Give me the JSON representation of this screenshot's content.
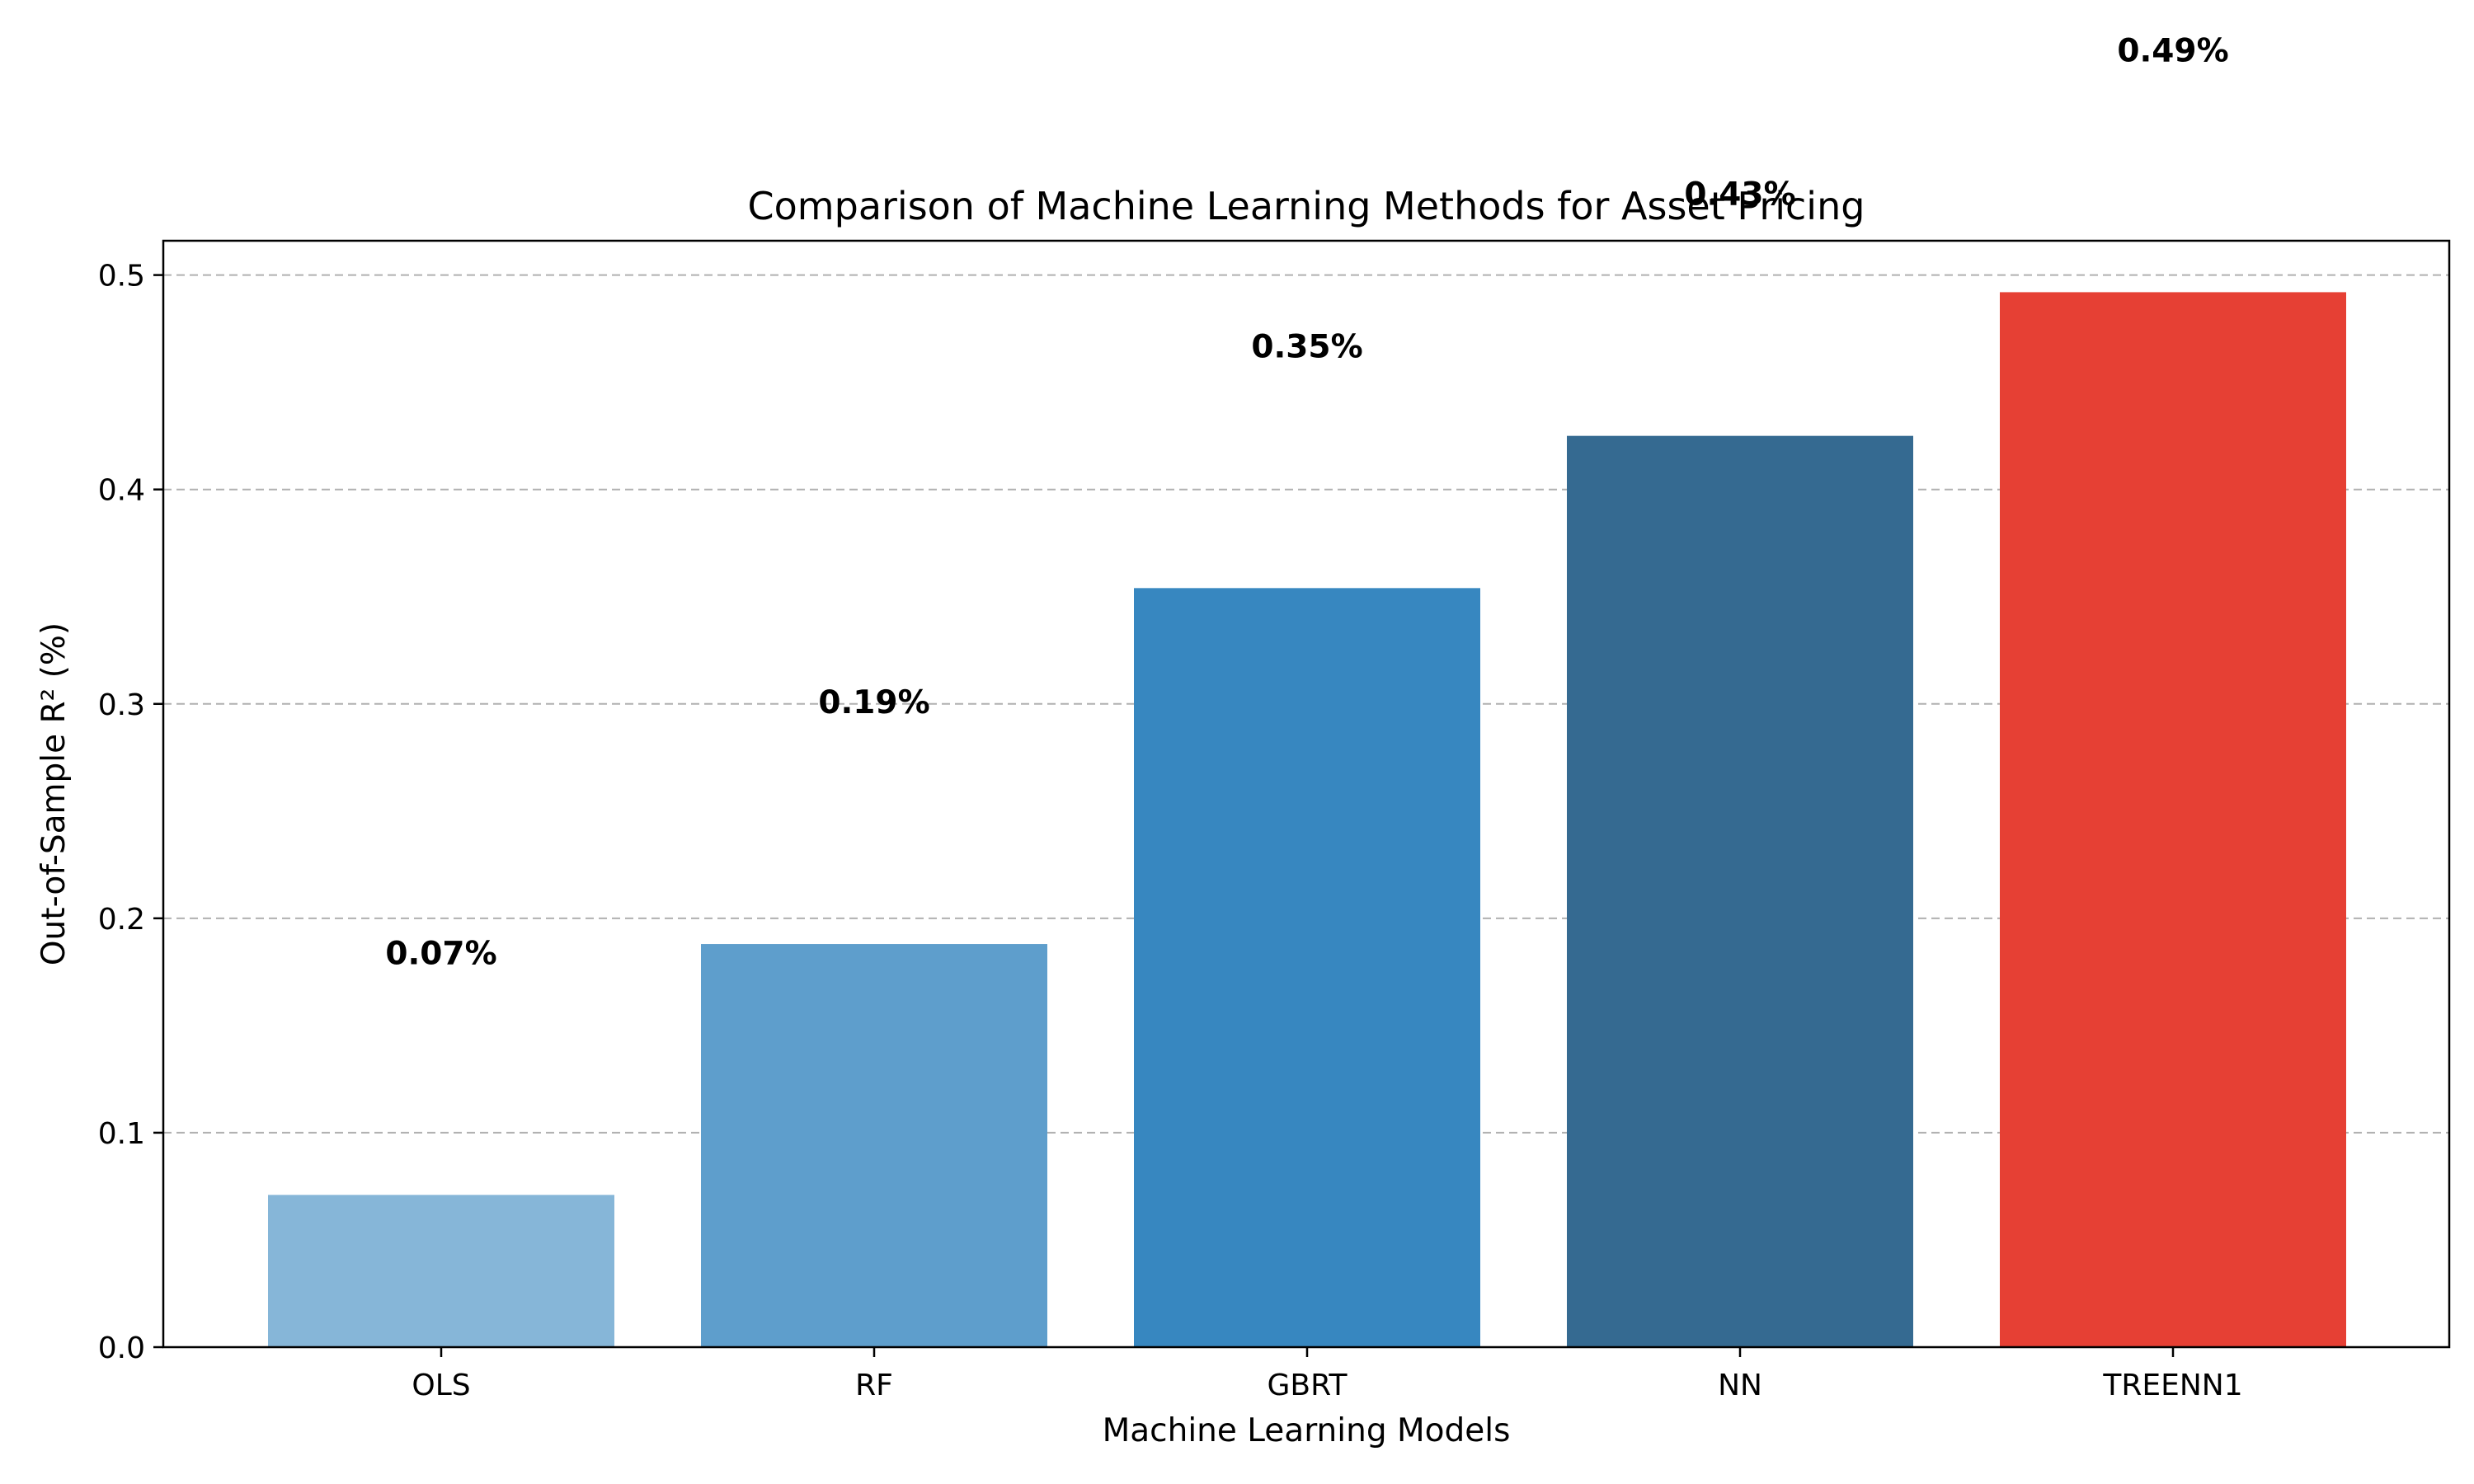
{
  "chart_data": {
    "type": "bar",
    "title": "Comparison of Machine Learning Methods for Asset Pricing",
    "xlabel": "Machine Learning Models",
    "ylabel": "Out-of-Sample R² (%)",
    "categories": [
      "OLS",
      "RF",
      "GBRT",
      "NN",
      "TREENN1"
    ],
    "values": [
      0.071,
      0.188,
      0.354,
      0.425,
      0.492
    ],
    "data_labels": [
      "0.07%",
      "0.19%",
      "0.35%",
      "0.43%",
      "0.49%"
    ],
    "bar_colors": [
      "#86b6d8",
      "#5e9ecc",
      "#3787c0",
      "#356a91",
      "#e64034"
    ],
    "ylim": [
      0,
      0.516
    ],
    "yticks": [
      0.0,
      0.1,
      0.2,
      0.3,
      0.4,
      0.5
    ],
    "ytick_labels": [
      "0.0",
      "0.1",
      "0.2",
      "0.3",
      "0.4",
      "0.5"
    ],
    "grid": "y-dashed",
    "legend": "none"
  }
}
